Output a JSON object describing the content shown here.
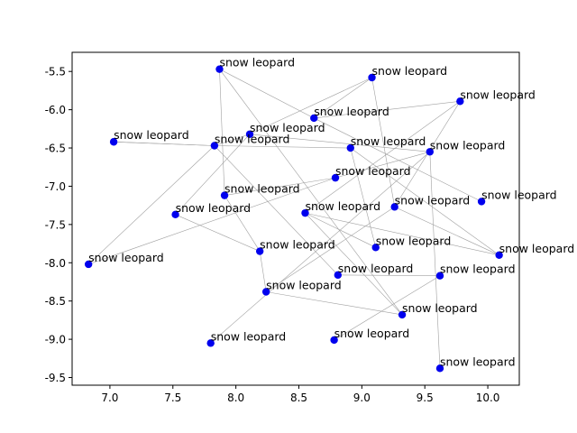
{
  "chart_data": {
    "type": "scatter",
    "title": "",
    "xlabel": "",
    "ylabel": "",
    "xlim": [
      6.7,
      10.25
    ],
    "ylim": [
      -9.6,
      -5.25
    ],
    "x_ticks": [
      "7.0",
      "7.5",
      "8.0",
      "8.5",
      "9.0",
      "9.5",
      "10.0"
    ],
    "y_ticks": [
      "-5.5",
      "-6.0",
      "-6.5",
      "-7.0",
      "-7.5",
      "-8.0",
      "-8.5",
      "-9.0",
      "-9.5"
    ],
    "x_tick_values": [
      7.0,
      7.5,
      8.0,
      8.5,
      9.0,
      9.5,
      10.0
    ],
    "y_tick_values": [
      -5.5,
      -6.0,
      -6.5,
      -7.0,
      -7.5,
      -8.0,
      -8.5,
      -9.0,
      -9.5
    ],
    "grid": false,
    "point_color": "#0000ee",
    "line_color": "#a0a0a0",
    "points": [
      {
        "x": 7.87,
        "y": -5.47,
        "label": "snow leopard"
      },
      {
        "x": 9.08,
        "y": -5.58,
        "label": "snow leopard"
      },
      {
        "x": 9.78,
        "y": -5.89,
        "label": "snow leopard"
      },
      {
        "x": 8.62,
        "y": -6.11,
        "label": "snow leopard"
      },
      {
        "x": 8.11,
        "y": -6.32,
        "label": "snow leopard"
      },
      {
        "x": 7.03,
        "y": -6.42,
        "label": "snow leopard"
      },
      {
        "x": 7.83,
        "y": -6.47,
        "label": "snow leopard"
      },
      {
        "x": 8.91,
        "y": -6.5,
        "label": "snow leopard"
      },
      {
        "x": 9.54,
        "y": -6.55,
        "label": "snow leopard"
      },
      {
        "x": 8.79,
        "y": -6.89,
        "label": "snow leopard"
      },
      {
        "x": 7.91,
        "y": -7.12,
        "label": "snow leopard"
      },
      {
        "x": 9.95,
        "y": -7.2,
        "label": "snow leopard"
      },
      {
        "x": 9.26,
        "y": -7.27,
        "label": "snow leopard"
      },
      {
        "x": 8.55,
        "y": -7.35,
        "label": "snow leopard"
      },
      {
        "x": 7.52,
        "y": -7.37,
        "label": "snow leopard"
      },
      {
        "x": 9.11,
        "y": -7.8,
        "label": "snow leopard"
      },
      {
        "x": 8.19,
        "y": -7.85,
        "label": "snow leopard"
      },
      {
        "x": 10.09,
        "y": -7.9,
        "label": "snow leopard"
      },
      {
        "x": 6.83,
        "y": -8.02,
        "label": "snow leopard"
      },
      {
        "x": 8.81,
        "y": -8.16,
        "label": "snow leopard"
      },
      {
        "x": 9.62,
        "y": -8.17,
        "label": "snow leopard"
      },
      {
        "x": 8.24,
        "y": -8.38,
        "label": "snow leopard"
      },
      {
        "x": 9.32,
        "y": -8.68,
        "label": "snow leopard"
      },
      {
        "x": 8.78,
        "y": -9.01,
        "label": "snow leopard"
      },
      {
        "x": 7.8,
        "y": -9.05,
        "label": "snow leopard"
      },
      {
        "x": 9.62,
        "y": -9.38,
        "label": "snow leopard"
      }
    ],
    "edges": [
      [
        0,
        3
      ],
      [
        0,
        10
      ],
      [
        0,
        22
      ],
      [
        1,
        3
      ],
      [
        1,
        4
      ],
      [
        1,
        12
      ],
      [
        2,
        3
      ],
      [
        2,
        13
      ],
      [
        3,
        11
      ],
      [
        4,
        6
      ],
      [
        4,
        8
      ],
      [
        4,
        14
      ],
      [
        5,
        6
      ],
      [
        6,
        7
      ],
      [
        6,
        18
      ],
      [
        6,
        19
      ],
      [
        7,
        15
      ],
      [
        7,
        17
      ],
      [
        8,
        9
      ],
      [
        8,
        25
      ],
      [
        9,
        10
      ],
      [
        10,
        16
      ],
      [
        12,
        2
      ],
      [
        12,
        21
      ],
      [
        13,
        17
      ],
      [
        13,
        15
      ],
      [
        14,
        16
      ],
      [
        16,
        21
      ],
      [
        17,
        12
      ],
      [
        18,
        9
      ],
      [
        19,
        20
      ],
      [
        20,
        23
      ],
      [
        21,
        22
      ],
      [
        24,
        8
      ],
      [
        13,
        22
      ],
      [
        5,
        6
      ]
    ]
  }
}
